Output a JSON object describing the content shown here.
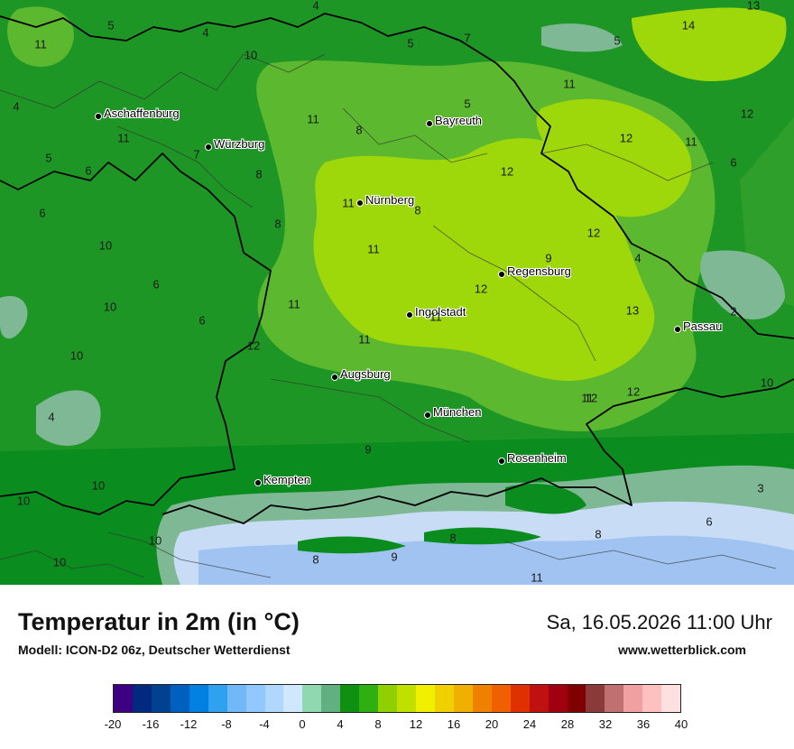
{
  "map": {
    "cities": [
      {
        "name": "Aschaffenburg"
      },
      {
        "name": "Würzburg"
      },
      {
        "name": "Bayreuth"
      },
      {
        "name": "Nürnberg"
      },
      {
        "name": "Regensburg"
      },
      {
        "name": "Ingolstadt"
      },
      {
        "name": "Passau"
      },
      {
        "name": "Augsburg"
      },
      {
        "name": "München"
      },
      {
        "name": "Rosenheim"
      },
      {
        "name": "Kempten"
      }
    ],
    "temperature_labels": [
      "4",
      "5",
      "4",
      "7",
      "13",
      "14",
      "11",
      "5",
      "10",
      "5",
      "4",
      "11",
      "11",
      "11",
      "5",
      "12",
      "5",
      "8",
      "11",
      "12",
      "11",
      "6",
      "7",
      "6",
      "8",
      "12",
      "6",
      "11",
      "8",
      "8",
      "12",
      "10",
      "11",
      "9",
      "4",
      "6",
      "12",
      "10",
      "6",
      "11",
      "12",
      "13",
      "2",
      "10",
      "11",
      "11",
      "4",
      "10",
      "12",
      "12",
      "9",
      "10",
      "10",
      "3",
      "6",
      "10",
      "8",
      "8",
      "9",
      "8",
      "11",
      "10"
    ],
    "colors": {
      "green_dark": "#0a8c1e",
      "green_mid": "#2e9f2a",
      "green_light": "#5cb82e",
      "yellow_green": "#9ed80a",
      "teal": "#7fb894",
      "light_blue": "#c8ddf5",
      "blue": "#8fb8f0"
    }
  },
  "footer": {
    "title": "Temperatur in 2m (in °C)",
    "subtitle": "Modell: ICON-D2 06z, Deutscher Wetterdienst",
    "datetime": "Sa, 16.05.2026 11:00 Uhr",
    "website": "www.wetterblick.com"
  },
  "legend": {
    "colors": [
      "#3d0080",
      "#002a80",
      "#004090",
      "#0060c0",
      "#0080e0",
      "#30a0f0",
      "#70b8f8",
      "#90c8ff",
      "#b0d8ff",
      "#d0e8ff",
      "#90d8b0",
      "#60b080",
      "#109010",
      "#30b010",
      "#90d000",
      "#c0e000",
      "#f0f000",
      "#f0d000",
      "#f0b000",
      "#f08000",
      "#f06000",
      "#e03000",
      "#c01010",
      "#a00010",
      "#800000",
      "#8b3a3a",
      "#c07070",
      "#f0a0a0",
      "#ffc0c0",
      "#ffe0e0"
    ],
    "tick_labels": [
      "-20",
      "-16",
      "-12",
      "-8",
      "-4",
      "0",
      "4",
      "8",
      "12",
      "16",
      "20",
      "24",
      "28",
      "32",
      "36",
      "40"
    ]
  }
}
